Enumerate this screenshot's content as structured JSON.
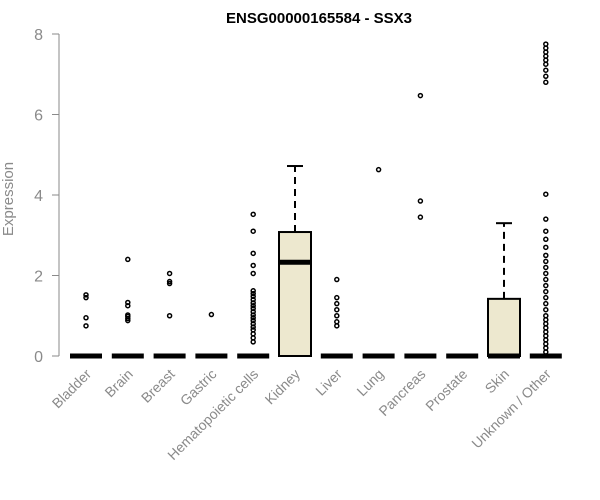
{
  "chart_data": {
    "type": "box",
    "title": "ENSG00000165584 - SSX3",
    "xlabel": "",
    "ylabel": "Expression",
    "ylim": [
      0,
      8
    ],
    "yticks": [
      0,
      2,
      4,
      6,
      8
    ],
    "grid": false,
    "box_fill": "#ede8cf",
    "categories": [
      "Bladder",
      "Brain",
      "Breast",
      "Gastric",
      "Hematopoietic cells",
      "Kidney",
      "Liver",
      "Lung",
      "Pancreas",
      "Prostate",
      "Skin",
      "Unknown / Other"
    ],
    "boxes": [
      {
        "category": "Bladder",
        "q1": 0,
        "median": 0,
        "q3": 0,
        "whisker_low": 0,
        "whisker_high": 0,
        "outliers": [
          0.75,
          0.95,
          1.45,
          1.52
        ]
      },
      {
        "category": "Brain",
        "q1": 0,
        "median": 0,
        "q3": 0,
        "whisker_low": 0,
        "whisker_high": 0,
        "outliers": [
          0.88,
          0.93,
          0.98,
          1.02,
          1.25,
          1.33,
          2.4
        ]
      },
      {
        "category": "Breast",
        "q1": 0,
        "median": 0,
        "q3": 0,
        "whisker_low": 0,
        "whisker_high": 0,
        "outliers": [
          1.0,
          1.8,
          1.85,
          2.05
        ]
      },
      {
        "category": "Gastric",
        "q1": 0,
        "median": 0,
        "q3": 0,
        "whisker_low": 0,
        "whisker_high": 0,
        "outliers": [
          1.03
        ]
      },
      {
        "category": "Hematopoietic cells",
        "q1": 0,
        "median": 0,
        "q3": 0,
        "whisker_low": 0,
        "whisker_high": 0,
        "outliers": [
          0.35,
          0.45,
          0.55,
          0.65,
          0.72,
          0.8,
          0.88,
          0.95,
          1.02,
          1.1,
          1.18,
          1.25,
          1.32,
          1.4,
          1.48,
          1.55,
          1.62,
          2.05,
          2.25,
          2.55,
          3.1,
          3.52
        ]
      },
      {
        "category": "Kidney",
        "q1": 0,
        "median": 2.33,
        "q3": 3.08,
        "whisker_low": 0,
        "whisker_high": 4.72,
        "outliers": []
      },
      {
        "category": "Liver",
        "q1": 0,
        "median": 0,
        "q3": 0,
        "whisker_low": 0,
        "whisker_high": 0,
        "outliers": [
          0.75,
          0.85,
          1.0,
          1.15,
          1.3,
          1.45,
          1.9
        ]
      },
      {
        "category": "Lung",
        "q1": 0,
        "median": 0,
        "q3": 0,
        "whisker_low": 0,
        "whisker_high": 0,
        "outliers": [
          4.63
        ]
      },
      {
        "category": "Pancreas",
        "q1": 0,
        "median": 0,
        "q3": 0,
        "whisker_low": 0,
        "whisker_high": 0,
        "outliers": [
          3.45,
          3.85,
          6.47
        ]
      },
      {
        "category": "Prostate",
        "q1": 0,
        "median": 0,
        "q3": 0,
        "whisker_low": 0,
        "whisker_high": 0,
        "outliers": []
      },
      {
        "category": "Skin",
        "q1": 0,
        "median": 0,
        "q3": 1.42,
        "whisker_low": 0,
        "whisker_high": 3.3,
        "outliers": []
      },
      {
        "category": "Unknown / Other",
        "q1": 0,
        "median": 0,
        "q3": 0,
        "whisker_low": 0,
        "whisker_high": 0,
        "outliers": [
          0.1,
          0.2,
          0.3,
          0.4,
          0.5,
          0.6,
          0.7,
          0.8,
          0.9,
          1.0,
          1.15,
          1.3,
          1.45,
          1.6,
          1.75,
          1.9,
          2.05,
          2.2,
          2.35,
          2.5,
          2.7,
          2.9,
          3.1,
          3.4,
          4.02,
          6.8,
          6.95,
          7.1,
          7.25,
          7.35,
          7.45,
          7.55,
          7.65,
          7.75
        ]
      }
    ]
  }
}
